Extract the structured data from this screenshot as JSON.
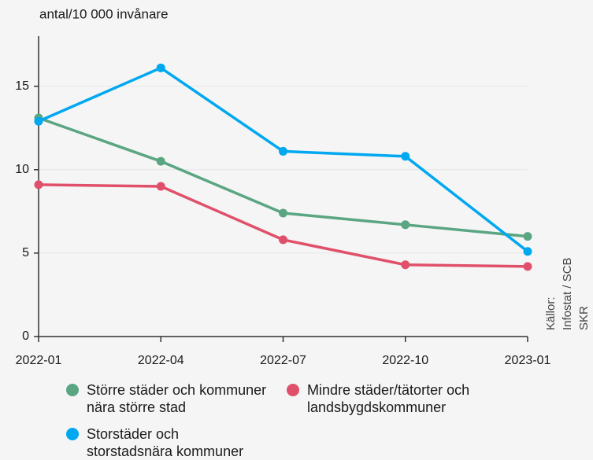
{
  "chart_data": {
    "type": "line",
    "y_label": "antal/10 000 invånare",
    "categories": [
      "2022-01",
      "2022-04",
      "2022-07",
      "2022-10",
      "2023-01"
    ],
    "series": [
      {
        "name": "Större städer och kommuner nära större stad",
        "color": "#5aa582",
        "values": [
          13.1,
          10.5,
          7.4,
          6.7,
          6.0
        ]
      },
      {
        "name": "Mindre städer/tätorter och landsbygdskommuner",
        "color": "#e0506a",
        "values": [
          9.1,
          9.0,
          5.8,
          4.3,
          4.2
        ]
      },
      {
        "name": "Storstäder och storstadsnära kommuner",
        "color": "#00a8f0",
        "values": [
          12.9,
          16.1,
          11.1,
          10.8,
          5.1
        ]
      }
    ],
    "source": [
      "Källor:",
      "Infostat / SCB",
      "SKR"
    ],
    "ylim": [
      0,
      18
    ],
    "yticks": [
      0,
      5,
      10,
      15
    ],
    "grid": true
  }
}
